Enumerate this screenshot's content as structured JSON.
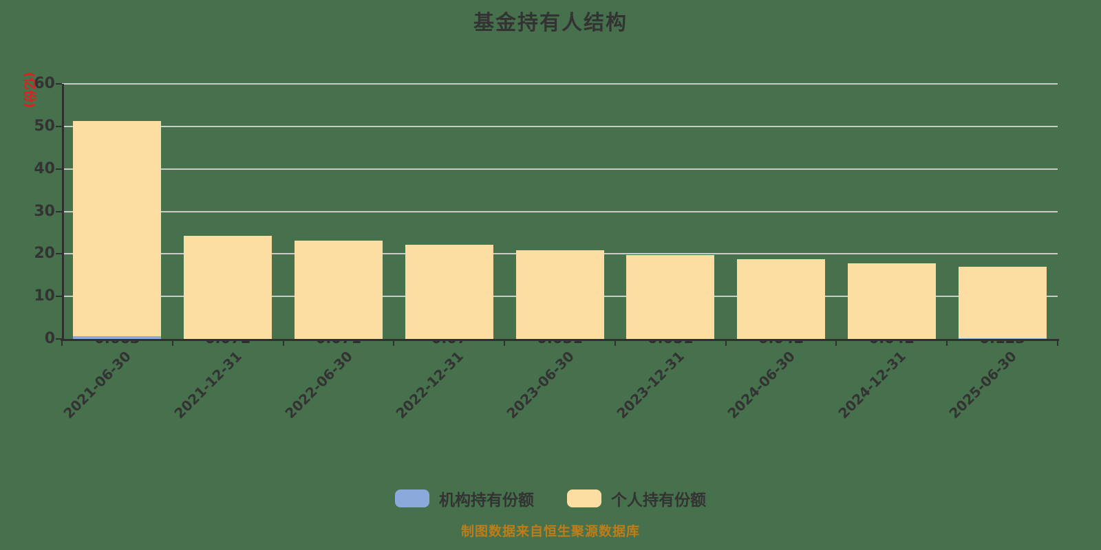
{
  "title": "基金持有人结构",
  "y_axis": {
    "unit": "(亿份)",
    "ticks": [
      0,
      10,
      20,
      30,
      40,
      50,
      60
    ],
    "max": 60
  },
  "chart_data": {
    "type": "bar",
    "stacked": true,
    "title": "基金持有人结构",
    "ylabel": "(亿份)",
    "ylim": [
      0,
      60
    ],
    "grid": true,
    "legend_position": "bottom",
    "categories": [
      "2021-06-30",
      "2021-12-31",
      "2022-06-30",
      "2022-12-31",
      "2023-06-30",
      "2023-12-31",
      "2024-06-30",
      "2024-12-31",
      "2025-06-30"
    ],
    "series": [
      {
        "name": "机构持有份额",
        "color": "#8CA9DB",
        "values": [
          0.663,
          0.072,
          0.071,
          0.07,
          0.051,
          0.051,
          0.042,
          0.042,
          0.123
        ],
        "value_labels": [
          "0.663",
          "0.072",
          "0.071",
          "0.07",
          "0.051",
          "0.051",
          "0.042",
          "0.042",
          "0.123"
        ]
      },
      {
        "name": "个人持有份额",
        "color": "#FCDEA2",
        "values": [
          50.6,
          24.2,
          23.1,
          22.1,
          20.8,
          19.7,
          18.7,
          17.7,
          16.9
        ]
      }
    ]
  },
  "legend": {
    "items": [
      {
        "id": "institutional",
        "label": "机构持有份额",
        "color": "#8CA9DB"
      },
      {
        "id": "individual",
        "label": "个人持有份额",
        "color": "#FCDEA2"
      }
    ]
  },
  "footer": {
    "caption": "制图数据来自恒生聚源数据库"
  },
  "colors": {
    "background": "#47704C",
    "gridline": "#C9CDC9",
    "axis": "#2F2F2F",
    "text": "#333333",
    "y_unit": "#E01F1F",
    "caption": "#BE7D18",
    "institutional_bar": "#8CA9DB",
    "individual_bar": "#FCDEA2"
  }
}
